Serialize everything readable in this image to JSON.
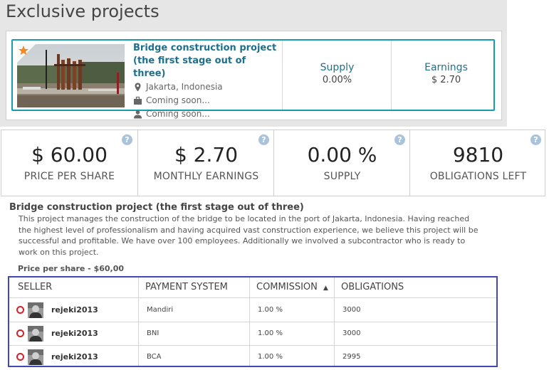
{
  "header": {
    "title": "Exclusive projects"
  },
  "project": {
    "title": "Bridge construction project (the first stage out of three)",
    "location": "Jakarta, Indonesia",
    "line2": "Coming soon...",
    "line3": "Coming soon...",
    "supply_label": "Supply",
    "supply_value": "0.00%",
    "earnings_label": "Earnings",
    "earnings_value": "$ 2.70"
  },
  "metrics": [
    {
      "value": "$ 60.00",
      "label": "PRICE PER SHARE"
    },
    {
      "value": "$ 2.70",
      "label": "MONTHLY EARNINGS"
    },
    {
      "value": "0.00 %",
      "label": "SUPPLY"
    },
    {
      "value": "9810",
      "label": "OBLIGATIONS LEFT"
    }
  ],
  "help_glyph": "?",
  "description": {
    "title": "Bridge construction project (the first stage out of three)",
    "text": "This project manages the construction of the bridge to be located in the port of Jakarta, Indonesia. Having reached the highest level of professionalism and having acquired vast construction experience, we believe this project will be successful and profitable. We have over 100 employees. Additionally we involved a subcontractor who is ready to work on this project.",
    "price_line": "Price per share - $60,00"
  },
  "table": {
    "headers": {
      "seller": "SELLER",
      "payment": "PAYMENT SYSTEM",
      "commission": "COMMISSION",
      "obligations": "OBLIGATIONS"
    },
    "sort_indicator": "▲",
    "rows": [
      {
        "seller": "rejeki2013",
        "payment": "Mandiri",
        "commission": "1.00 %",
        "obligations": "3000"
      },
      {
        "seller": "rejeki2013",
        "payment": "BNI",
        "commission": "1.00 %",
        "obligations": "3000"
      },
      {
        "seller": "rejeki2013",
        "payment": "BCA",
        "commission": "1.00 %",
        "obligations": "2995"
      }
    ]
  },
  "colors": {
    "accent": "#1a9ab0",
    "link": "#1e6f8c",
    "table_border": "#3f48b8",
    "status_dot": "#d2232a",
    "star": "#f08a24"
  },
  "icons": [
    "star-icon",
    "location-pin-icon",
    "briefcase-icon",
    "person-icon",
    "help-icon",
    "sort-up-icon",
    "status-dot-icon",
    "avatar"
  ]
}
